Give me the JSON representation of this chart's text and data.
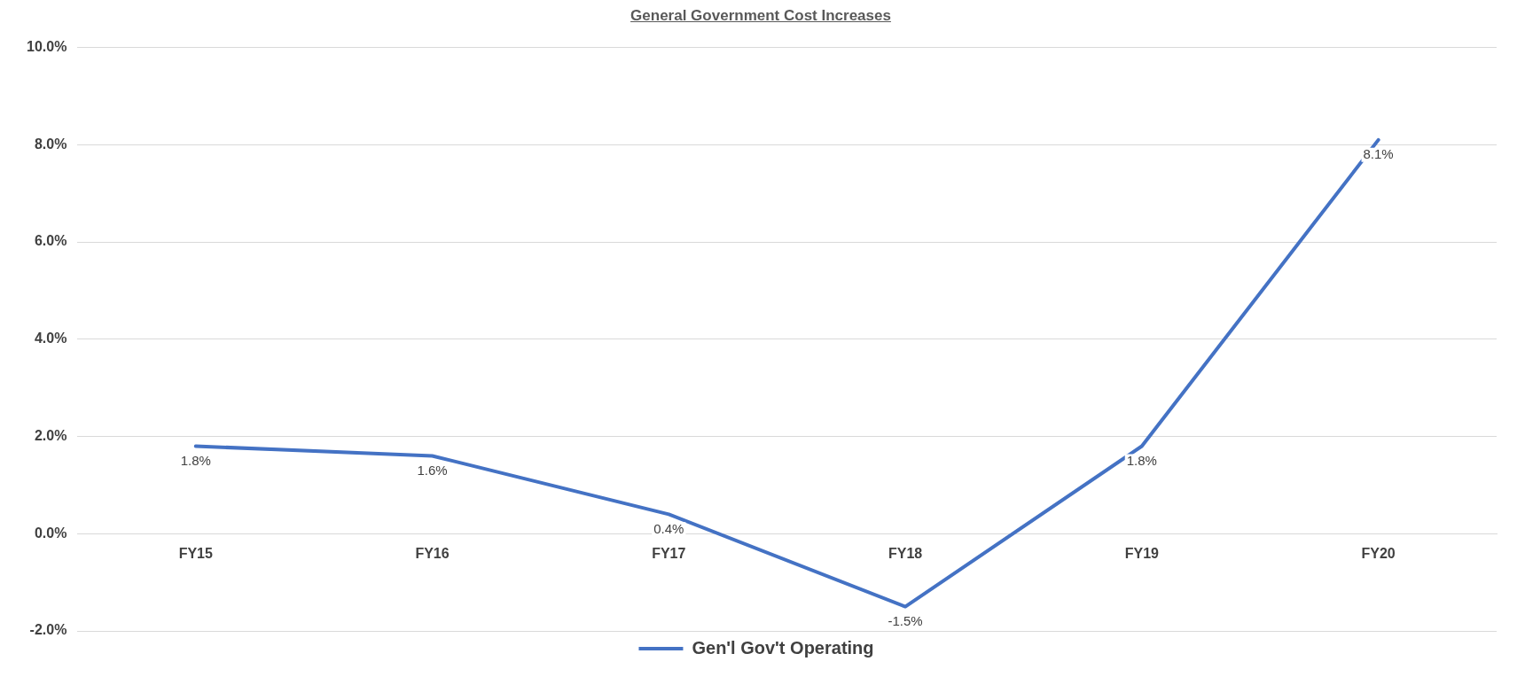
{
  "chart_data": {
    "type": "line",
    "title": "General Government Cost Increases",
    "categories": [
      "FY15",
      "FY16",
      "FY17",
      "FY18",
      "FY19",
      "FY20"
    ],
    "series": [
      {
        "name": "Gen'l Gov't Operating",
        "color": "#4472c4",
        "values": [
          1.8,
          1.6,
          0.4,
          -1.5,
          1.8,
          8.1
        ],
        "value_labels": [
          "1.8%",
          "1.6%",
          "0.4%",
          "-1.5%",
          "1.8%",
          "8.1%"
        ]
      }
    ],
    "ylim": [
      -2,
      10
    ],
    "yticks": [
      {
        "value": -2,
        "label": "-2.0%"
      },
      {
        "value": 0,
        "label": "0.0%"
      },
      {
        "value": 2,
        "label": "2.0%"
      },
      {
        "value": 4,
        "label": "4.0%"
      },
      {
        "value": 6,
        "label": "6.0%"
      },
      {
        "value": 8,
        "label": "8.0%"
      },
      {
        "value": 10,
        "label": "10.0%"
      }
    ],
    "grid": "y",
    "legend": "bottom",
    "marker": "none",
    "line_style": "solid"
  }
}
